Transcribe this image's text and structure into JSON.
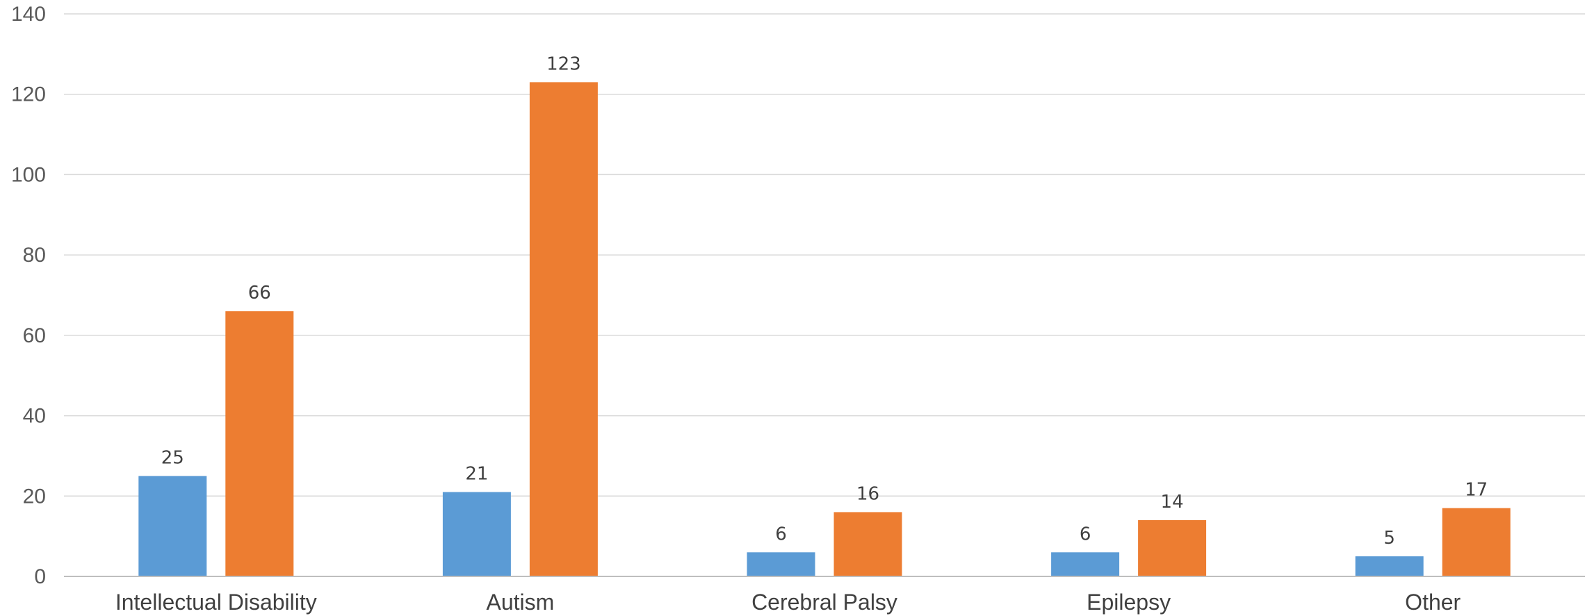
{
  "chart_data": {
    "type": "bar",
    "categories": [
      "Intellectual Disability",
      "Autism",
      "Cerebral Palsy",
      "Epilepsy",
      "Other"
    ],
    "series": [
      {
        "values": [
          25,
          21,
          6,
          6,
          5
        ],
        "color": "#5B9BD5"
      },
      {
        "values": [
          66,
          123,
          16,
          14,
          17
        ],
        "color": "#ED7D31"
      }
    ],
    "yticks": [
      0,
      20,
      40,
      60,
      80,
      100,
      120,
      140
    ],
    "ylim": [
      0,
      140
    ],
    "grid": true,
    "data_labels": true,
    "legend": "none"
  }
}
